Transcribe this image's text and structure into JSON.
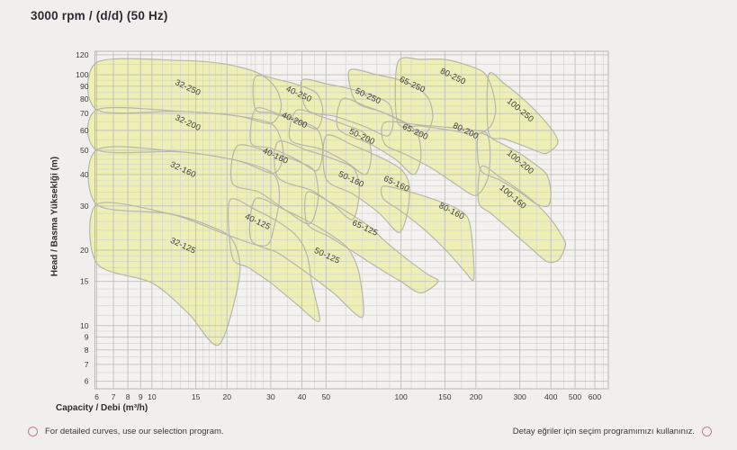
{
  "title": "3000 rpm / (d/d) (50 Hz)",
  "footer": {
    "left_note": "For detailed curves, use our selection program.",
    "right_note": "Detay eğriler için seçim programımızı kullanınız."
  },
  "colors": {
    "page_bg": "#f0efed",
    "plot_bg": "#f3f2f0",
    "grid_minor": "#d5d5d1",
    "grid_major": "#bfbfba",
    "plot_border": "#b7b7b2",
    "region_fill": "#edefb5",
    "region_border": "#b7b7ab",
    "region_label": "#3c3c3c",
    "tick_label": "#3a3a3a",
    "axis_title": "#2e2e2e",
    "title": "#2b2b30",
    "footer_bullet": "#c27f8d"
  },
  "chart_data": {
    "type": "area",
    "title": "3000 rpm / (d/d) (50 Hz)",
    "xlabel": "Capacity / Debi (m³/h)",
    "ylabel": "Head / Basma Yükseklği (m)",
    "x_scale": "log",
    "y_scale": "log",
    "x_range": [
      5.9,
      680
    ],
    "y_range": [
      5.6,
      124
    ],
    "grid": true,
    "x_ticks": [
      6,
      7,
      8,
      9,
      10,
      15,
      20,
      30,
      40,
      50,
      100,
      150,
      200,
      300,
      400,
      500,
      600
    ],
    "y_ticks": [
      120,
      100,
      90,
      80,
      70,
      60,
      50,
      40,
      30,
      20,
      15,
      10,
      9,
      8,
      7,
      6
    ],
    "x_minor": [
      11,
      12,
      13,
      14,
      16,
      17,
      18,
      19,
      22,
      24,
      25,
      26,
      28,
      35,
      45,
      60,
      70,
      80,
      90,
      110,
      125,
      175,
      250,
      350,
      450,
      550,
      650
    ],
    "y_minor": [
      6.5,
      7.5,
      8.5,
      9.5,
      11,
      12,
      13,
      14,
      16,
      17,
      18,
      19,
      22,
      24,
      26,
      28,
      32,
      34,
      36,
      38,
      42,
      44,
      46,
      48,
      55,
      65,
      75,
      85,
      95,
      110
    ],
    "regions": [
      {
        "name": "32-250",
        "label": {
          "q": 13.8,
          "h": 87,
          "angle": 25
        },
        "points": [
          [
            6,
            112
          ],
          [
            13,
            114
          ],
          [
            20,
            110
          ],
          [
            27,
            101
          ],
          [
            31.5,
            88
          ],
          [
            33,
            74
          ],
          [
            30,
            64
          ],
          [
            22,
            68.5
          ],
          [
            13,
            71.5
          ],
          [
            6,
            72.5
          ]
        ]
      },
      {
        "name": "32-200",
        "label": {
          "q": 13.8,
          "h": 63,
          "angle": 25
        },
        "points": [
          [
            6,
            72.5
          ],
          [
            13,
            71.5
          ],
          [
            22,
            68.5
          ],
          [
            30,
            64
          ],
          [
            33,
            55
          ],
          [
            33.5,
            46
          ],
          [
            30.5,
            40.5
          ],
          [
            22,
            45.5
          ],
          [
            13,
            49.3
          ],
          [
            6,
            50.2
          ]
        ]
      },
      {
        "name": "32-160",
        "label": {
          "q": 13.2,
          "h": 41,
          "angle": 25
        },
        "points": [
          [
            6,
            50.2
          ],
          [
            13,
            49.3
          ],
          [
            22,
            45.5
          ],
          [
            30.5,
            40.5
          ],
          [
            32.5,
            33
          ],
          [
            31,
            25
          ],
          [
            28.5,
            20.8
          ],
          [
            20.5,
            22.8
          ],
          [
            12,
            27.8
          ],
          [
            6,
            30.4
          ]
        ]
      },
      {
        "name": "32-125",
        "label": {
          "q": 13.2,
          "h": 20.4,
          "angle": 25
        },
        "points": [
          [
            6,
            30.4
          ],
          [
            12,
            27.8
          ],
          [
            17,
            25
          ],
          [
            21,
            22
          ],
          [
            22.5,
            16
          ],
          [
            18.6,
            8.4
          ],
          [
            14,
            11.2
          ],
          [
            10,
            14.8
          ],
          [
            6,
            17.7
          ]
        ]
      },
      {
        "name": "40-250",
        "label": {
          "q": 38.5,
          "h": 82,
          "angle": 25
        },
        "points": [
          [
            26,
            98
          ],
          [
            33,
            95
          ],
          [
            40,
            90
          ],
          [
            46,
            84
          ],
          [
            48.5,
            72
          ],
          [
            46,
            61
          ],
          [
            38,
            65.5
          ],
          [
            30,
            70.5
          ],
          [
            26,
            73
          ]
        ]
      },
      {
        "name": "40-200",
        "label": {
          "q": 37,
          "h": 64.5,
          "angle": 25
        },
        "points": [
          [
            26,
            73
          ],
          [
            32,
            70
          ],
          [
            40,
            65
          ],
          [
            46.5,
            60
          ],
          [
            48.5,
            50
          ],
          [
            46,
            41.5
          ],
          [
            38,
            46
          ],
          [
            30,
            51
          ],
          [
            25,
            53.5
          ]
        ]
      },
      {
        "name": "40-160",
        "label": {
          "q": 31,
          "h": 46.5,
          "angle": 25
        },
        "points": [
          [
            22,
            52
          ],
          [
            30,
            49
          ],
          [
            40,
            44.5
          ],
          [
            45,
            41
          ],
          [
            46.5,
            32
          ],
          [
            43,
            25.5
          ],
          [
            35,
            28.5
          ],
          [
            27,
            34
          ],
          [
            21,
            37
          ]
        ]
      },
      {
        "name": "40-125",
        "label": {
          "q": 26.3,
          "h": 25.4,
          "angle": 25
        },
        "points": [
          [
            20.5,
            31.5
          ],
          [
            26,
            29
          ],
          [
            33,
            25.5
          ],
          [
            38.5,
            22.5
          ],
          [
            42,
            19
          ],
          [
            44,
            14.5
          ],
          [
            47,
            10.4
          ],
          [
            38,
            12.2
          ],
          [
            30,
            14.8
          ],
          [
            24.5,
            17
          ],
          [
            21,
            18.8
          ]
        ]
      },
      {
        "name": "50-250",
        "label": {
          "q": 73,
          "h": 80.5,
          "angle": 25
        },
        "points": [
          [
            40,
            95
          ],
          [
            50,
            92
          ],
          [
            62,
            88
          ],
          [
            78,
            82
          ],
          [
            90,
            76
          ],
          [
            93,
            64
          ],
          [
            88,
            57
          ],
          [
            72,
            62
          ],
          [
            55,
            68
          ],
          [
            42,
            72.5
          ]
        ]
      },
      {
        "name": "50-200",
        "label": {
          "q": 69,
          "h": 55.5,
          "angle": 25
        },
        "points": [
          [
            38,
            72
          ],
          [
            48,
            68
          ],
          [
            60,
            63
          ],
          [
            72,
            58
          ],
          [
            76,
            48
          ],
          [
            72,
            40
          ],
          [
            60,
            45
          ],
          [
            48,
            50.5
          ],
          [
            36,
            55
          ]
        ]
      },
      {
        "name": "50-160",
        "label": {
          "q": 62.5,
          "h": 37.5,
          "angle": 25
        },
        "points": [
          [
            32,
            54
          ],
          [
            42,
            50
          ],
          [
            54,
            46
          ],
          [
            65,
            42
          ],
          [
            68,
            34
          ],
          [
            64,
            26.5
          ],
          [
            54,
            30
          ],
          [
            44,
            34.5
          ],
          [
            32,
            39
          ]
        ]
      },
      {
        "name": "50-125",
        "label": {
          "q": 50,
          "h": 18.6,
          "angle": 25
        },
        "points": [
          [
            26,
            32
          ],
          [
            34,
            29
          ],
          [
            44,
            25.5
          ],
          [
            54,
            22.5
          ],
          [
            62,
            20
          ],
          [
            68,
            16
          ],
          [
            70,
            10.8
          ],
          [
            54,
            13.4
          ],
          [
            42,
            16.2
          ],
          [
            32,
            19.5
          ],
          [
            25,
            22
          ]
        ]
      },
      {
        "name": "65-250",
        "label": {
          "q": 110,
          "h": 89.5,
          "angle": 25
        },
        "points": [
          [
            62,
            104
          ],
          [
            80,
            100
          ],
          [
            100,
            95
          ],
          [
            118,
            88
          ],
          [
            130,
            79
          ],
          [
            134,
            67
          ],
          [
            124,
            58
          ],
          [
            104,
            64
          ],
          [
            84,
            71
          ],
          [
            66,
            78
          ]
        ]
      },
      {
        "name": "65-200",
        "label": {
          "q": 113,
          "h": 58,
          "angle": 25
        },
        "points": [
          [
            58,
            80
          ],
          [
            72,
            75
          ],
          [
            90,
            69
          ],
          [
            108,
            63
          ],
          [
            118,
            56
          ],
          [
            120,
            46
          ],
          [
            112,
            40
          ],
          [
            95,
            46
          ],
          [
            75,
            53
          ],
          [
            56,
            61
          ]
        ]
      },
      {
        "name": "65-160",
        "label": {
          "q": 95,
          "h": 36,
          "angle": 25
        },
        "points": [
          [
            50,
            57
          ],
          [
            65,
            52
          ],
          [
            82,
            47
          ],
          [
            100,
            42
          ],
          [
            108,
            36
          ],
          [
            106,
            28
          ],
          [
            98,
            23.5
          ],
          [
            82,
            28
          ],
          [
            64,
            33.5
          ],
          [
            50,
            38.5
          ]
        ]
      },
      {
        "name": "65-125",
        "label": {
          "q": 71,
          "h": 24,
          "angle": 25
        },
        "points": [
          [
            42,
            34
          ],
          [
            52,
            31
          ],
          [
            64,
            27.5
          ],
          [
            76,
            24.5
          ],
          [
            85,
            22
          ],
          [
            105,
            18.5
          ],
          [
            128,
            16
          ],
          [
            141,
            15
          ],
          [
            120,
            13.5
          ],
          [
            100,
            15
          ],
          [
            85,
            16.5
          ],
          [
            68,
            19
          ],
          [
            52,
            22.5
          ],
          [
            42,
            25.5
          ]
        ]
      },
      {
        "name": "80-250",
        "label": {
          "q": 160,
          "h": 96.5,
          "angle": 26
        },
        "points": [
          [
            97,
            112
          ],
          [
            120,
            115
          ],
          [
            150,
            115
          ],
          [
            185,
            109
          ],
          [
            215,
            102
          ],
          [
            232,
            88
          ],
          [
            240,
            72
          ],
          [
            228,
            62
          ],
          [
            200,
            58
          ],
          [
            160,
            60
          ],
          [
            120,
            62.5
          ],
          [
            97,
            64.5
          ]
        ]
      },
      {
        "name": "80-200",
        "label": {
          "q": 180,
          "h": 58.5,
          "angle": 26
        },
        "points": [
          [
            86,
            64.5
          ],
          [
            120,
            63
          ],
          [
            160,
            61.5
          ],
          [
            200,
            60
          ],
          [
            222,
            58
          ],
          [
            228,
            48
          ],
          [
            222,
            38
          ],
          [
            200,
            33
          ],
          [
            170,
            36
          ],
          [
            135,
            42
          ],
          [
            105,
            48
          ],
          [
            86,
            53
          ]
        ]
      },
      {
        "name": "80-160",
        "label": {
          "q": 158,
          "h": 28,
          "angle": 27
        },
        "points": [
          [
            85,
            36
          ],
          [
            110,
            34
          ],
          [
            140,
            31.5
          ],
          [
            165,
            29.5
          ],
          [
            185,
            27
          ],
          [
            193,
            22
          ],
          [
            196,
            15.3
          ],
          [
            180,
            16.5
          ],
          [
            155,
            19.5
          ],
          [
            125,
            24
          ],
          [
            98,
            29
          ],
          [
            85,
            32
          ]
        ]
      },
      {
        "name": "100-250",
        "label": {
          "q": 297,
          "h": 71,
          "angle": 40
        },
        "points": [
          [
            225,
            100
          ],
          [
            260,
            92
          ],
          [
            310,
            80
          ],
          [
            370,
            67
          ],
          [
            415,
            58
          ],
          [
            425,
            53
          ],
          [
            380,
            48.5
          ],
          [
            320,
            51.5
          ],
          [
            260,
            55.5
          ],
          [
            225,
            58.5
          ]
        ]
      },
      {
        "name": "100-200",
        "label": {
          "q": 297,
          "h": 44,
          "angle": 40
        },
        "points": [
          [
            205,
            58
          ],
          [
            245,
            54
          ],
          [
            295,
            49
          ],
          [
            345,
            44
          ],
          [
            385,
            40
          ],
          [
            400,
            34
          ],
          [
            390,
            30
          ],
          [
            350,
            30.5
          ],
          [
            300,
            34
          ],
          [
            250,
            38
          ],
          [
            208,
            42
          ]
        ]
      },
      {
        "name": "100-160",
        "label": {
          "q": 277,
          "h": 32,
          "angle": 40
        },
        "points": [
          [
            210,
            43
          ],
          [
            250,
            39
          ],
          [
            300,
            34.5
          ],
          [
            350,
            30.5
          ],
          [
            400,
            26.5
          ],
          [
            440,
            23
          ],
          [
            458,
            21
          ],
          [
            430,
            18.3
          ],
          [
            385,
            18
          ],
          [
            330,
            20.5
          ],
          [
            275,
            24
          ],
          [
            230,
            28
          ],
          [
            205,
            31
          ]
        ]
      }
    ]
  }
}
